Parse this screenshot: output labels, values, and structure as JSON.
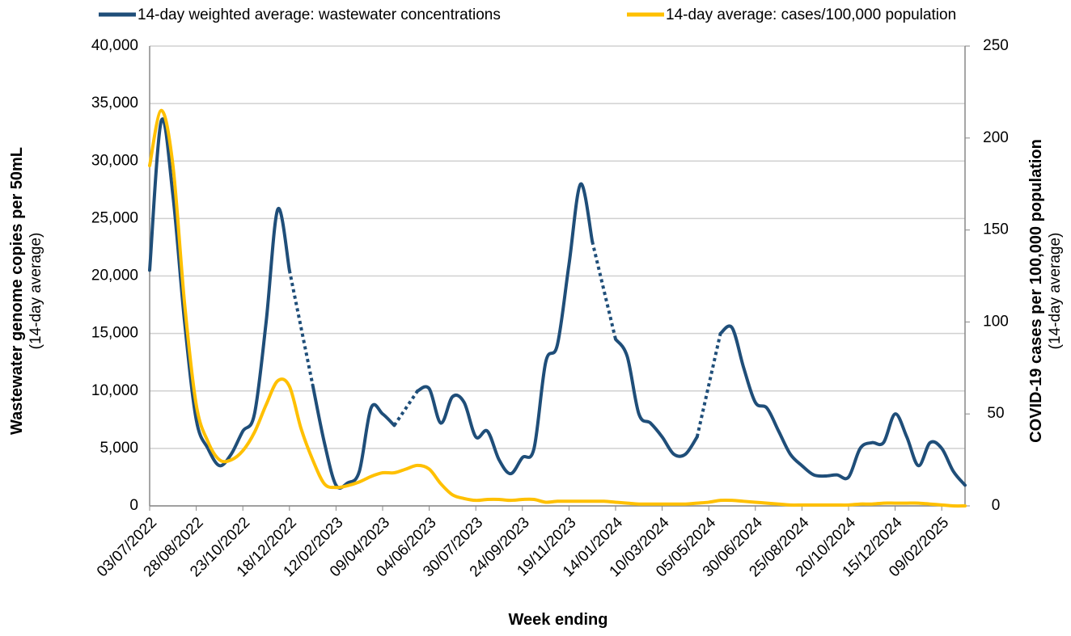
{
  "chart_data": {
    "type": "line",
    "x_label": "Week ending",
    "y_label": "Wastewater genome copies per 50mL",
    "y_label_sub": "(14-day average)",
    "y2_label": "COVID-19 cases per 100,000 population",
    "y2_label_sub": "(14-day average)",
    "categories": [
      "03/07/2022",
      null,
      null,
      null,
      "28/08/2022",
      null,
      null,
      null,
      "23/10/2022",
      null,
      null,
      null,
      "18/12/2022",
      null,
      null,
      null,
      "12/02/2023",
      null,
      null,
      null,
      "09/04/2023",
      null,
      null,
      null,
      "04/06/2023",
      null,
      null,
      null,
      "30/07/2023",
      null,
      null,
      null,
      "24/09/2023",
      null,
      null,
      null,
      "19/11/2023",
      null,
      null,
      null,
      "14/01/2024",
      null,
      null,
      null,
      "10/03/2024",
      null,
      null,
      null,
      "05/05/2024",
      null,
      null,
      null,
      "30/06/2024",
      null,
      null,
      null,
      "25/08/2024",
      null,
      null,
      null,
      "20/10/2024",
      null,
      null,
      null,
      "15/12/2024",
      null,
      null,
      null,
      "09/02/2025",
      null,
      null
    ],
    "series": [
      {
        "name": "14-day weighted average: wastewater concentrations",
        "color": "#1f4e79",
        "values": [
          20500,
          33500,
          27000,
          16000,
          7500,
          5000,
          3500,
          4500,
          6500,
          8000,
          16000,
          25800,
          20500,
          null,
          10500,
          5500,
          1800,
          2000,
          3000,
          8500,
          8000,
          7000,
          null,
          10000,
          10200,
          7200,
          9500,
          9000,
          6000,
          6500,
          4000,
          2800,
          4200,
          5000,
          12500,
          14000,
          21000,
          28000,
          23000,
          null,
          14500,
          13000,
          8000,
          7200,
          6000,
          4500,
          4500,
          6000,
          null,
          15000,
          15500,
          12000,
          9000,
          8500,
          6500,
          4500,
          3500,
          2700,
          2600,
          2700,
          2500,
          5000,
          5500,
          5500,
          8000,
          6000,
          3500,
          5500,
          5000,
          3000,
          1800
        ]
      },
      {
        "name": "14-day average: cases/100,000 population",
        "color": "#ffc000",
        "axis": "y2",
        "values": [
          185,
          215,
          185,
          110,
          55,
          35,
          25,
          25,
          30,
          40,
          55,
          68,
          65,
          42,
          25,
          12,
          10,
          11,
          13,
          16,
          18,
          18,
          20,
          22,
          20,
          12,
          6,
          4,
          3,
          3.5,
          3.5,
          3,
          3.5,
          3.5,
          2,
          2.5,
          2.5,
          2.5,
          2.5,
          2.5,
          2,
          1.5,
          1,
          1,
          1,
          1,
          1,
          1.5,
          2,
          3,
          3,
          2.5,
          2,
          1.5,
          1,
          0.5,
          0.5,
          0.5,
          0.5,
          0.5,
          0.5,
          1,
          1,
          1.5,
          1.5,
          1.5,
          1.5,
          1,
          0.5,
          0,
          0
        ]
      }
    ],
    "ylim": [
      0,
      40000
    ],
    "yticks": [
      0,
      {
        "value": 5000,
        "label": "5,000"
      },
      {
        "value": 10000,
        "label": "10,000"
      },
      {
        "value": 15000,
        "label": "15,000"
      },
      {
        "value": 20000,
        "label": "20,000"
      },
      {
        "value": 25000,
        "label": "25,000"
      },
      {
        "value": 30000,
        "label": "30,000"
      },
      {
        "value": 35000,
        "label": "35,000"
      },
      {
        "value": 40000,
        "label": "40,000"
      }
    ],
    "y2lim": [
      0,
      250
    ],
    "y2ticks": [
      0,
      50,
      100,
      150,
      200,
      250
    ],
    "grid": true,
    "legend": "top"
  }
}
